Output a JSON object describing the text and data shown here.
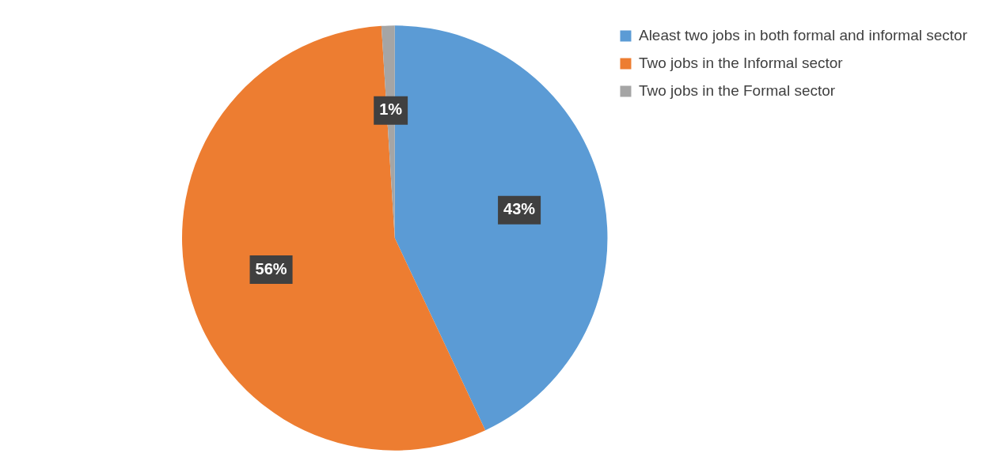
{
  "chart_data": {
    "type": "pie",
    "categories": [
      "Aleast two jobs in both formal and informal sector",
      "Two jobs in the Informal sector",
      "Two jobs in the Formal sector"
    ],
    "values": [
      43,
      56,
      1
    ],
    "colors": [
      "#5b9bd5",
      "#ed7d31",
      "#a5a5a5"
    ],
    "value_labels": [
      "43%",
      "56%",
      "1%"
    ],
    "legend": "top right"
  }
}
